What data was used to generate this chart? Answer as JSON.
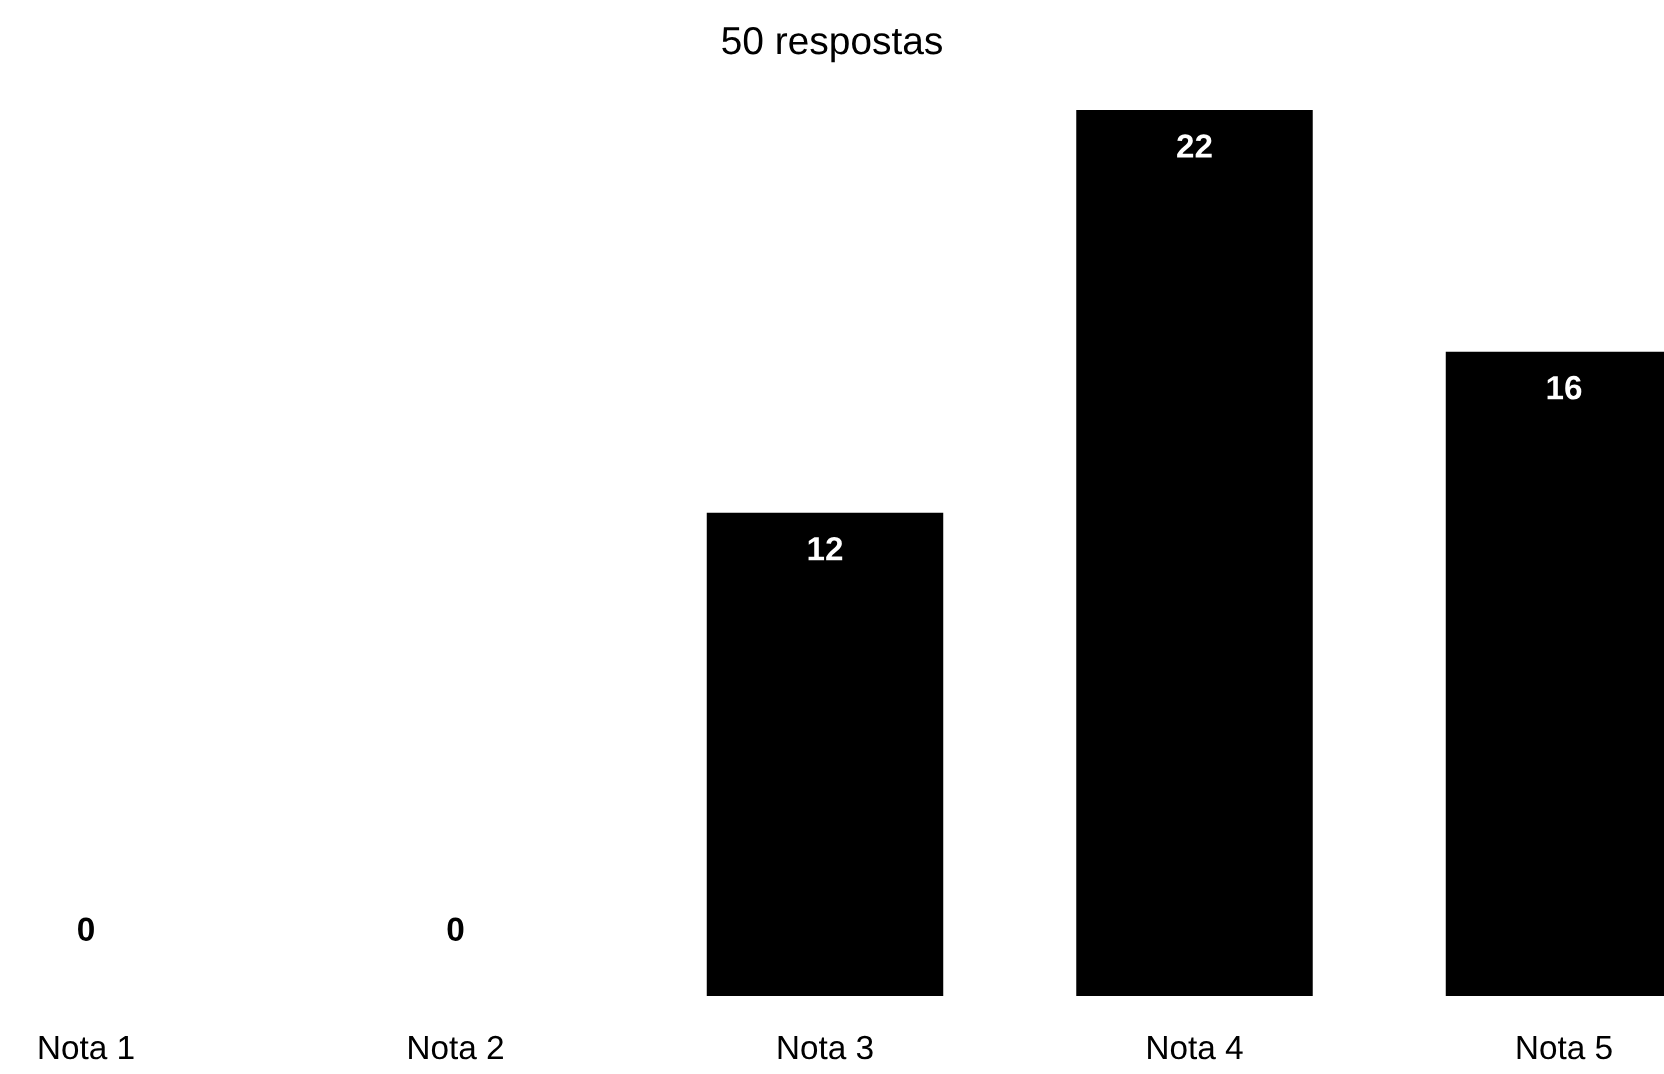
{
  "chart_data": {
    "type": "bar",
    "title": "50 respostas",
    "categories": [
      "Nota 1",
      "Nota 2",
      "Nota 3",
      "Nota 4",
      "Nota 5"
    ],
    "values": [
      0,
      0,
      12,
      22,
      16
    ],
    "color": "#000000",
    "data_labels": true,
    "grid": false,
    "legend": false
  }
}
